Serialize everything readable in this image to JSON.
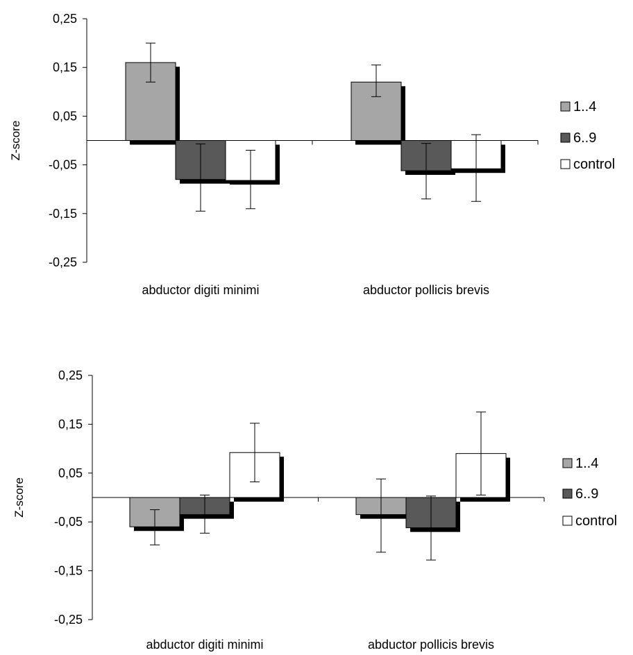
{
  "colors": {
    "1..4": "#a6a6a6",
    "6..9": "#595959",
    "control": "#ffffff",
    "shadow": "#000000",
    "outline": "#000000"
  },
  "chart_data": [
    {
      "type": "bar",
      "title": "",
      "xlabel": "",
      "ylabel": "Z-score",
      "ylim": [
        -0.25,
        0.25
      ],
      "yticks": [
        0.25,
        0.15,
        0.05,
        -0.05,
        -0.15,
        -0.25
      ],
      "ytick_labels": [
        "0,25",
        "0,15",
        "0,05",
        "-0,05",
        "-0,15",
        "-0,25"
      ],
      "categories": [
        "abductor digiti minimi",
        "abductor pollicis brevis"
      ],
      "series": [
        {
          "name": "1..4",
          "values": [
            0.16,
            0.12
          ],
          "error_low": [
            0.12,
            0.09
          ],
          "error_high": [
            0.2,
            0.155
          ]
        },
        {
          "name": "6..9",
          "values": [
            -0.08,
            -0.062
          ],
          "error_low": [
            -0.145,
            -0.12
          ],
          "error_high": [
            -0.007,
            -0.006
          ]
        },
        {
          "name": "control",
          "values": [
            -0.082,
            -0.058
          ],
          "error_low": [
            -0.14,
            -0.125
          ],
          "error_high": [
            -0.02,
            0.012
          ]
        }
      ],
      "legend_position": "right",
      "grid": false
    },
    {
      "type": "bar",
      "title": "",
      "xlabel": "",
      "ylabel": "Z-score",
      "ylim": [
        -0.25,
        0.25
      ],
      "yticks": [
        0.25,
        0.15,
        0.05,
        -0.05,
        -0.15,
        -0.25
      ],
      "ytick_labels": [
        "0,25",
        "0,15",
        "0,05",
        "-0,05",
        "-0,15",
        "-0,25"
      ],
      "categories": [
        "abductor digiti minimi",
        "abductor pollicis brevis"
      ],
      "series": [
        {
          "name": "1..4",
          "values": [
            -0.06,
            -0.035
          ],
          "error_low": [
            -0.097,
            -0.112
          ],
          "error_high": [
            -0.025,
            0.038
          ]
        },
        {
          "name": "6..9",
          "values": [
            -0.035,
            -0.062
          ],
          "error_low": [
            -0.073,
            -0.128
          ],
          "error_high": [
            0.005,
            0.003
          ]
        },
        {
          "name": "control",
          "values": [
            0.092,
            0.09
          ],
          "error_low": [
            0.032,
            0.005
          ],
          "error_high": [
            0.152,
            0.175
          ]
        }
      ],
      "legend_position": "right",
      "grid": false
    }
  ]
}
